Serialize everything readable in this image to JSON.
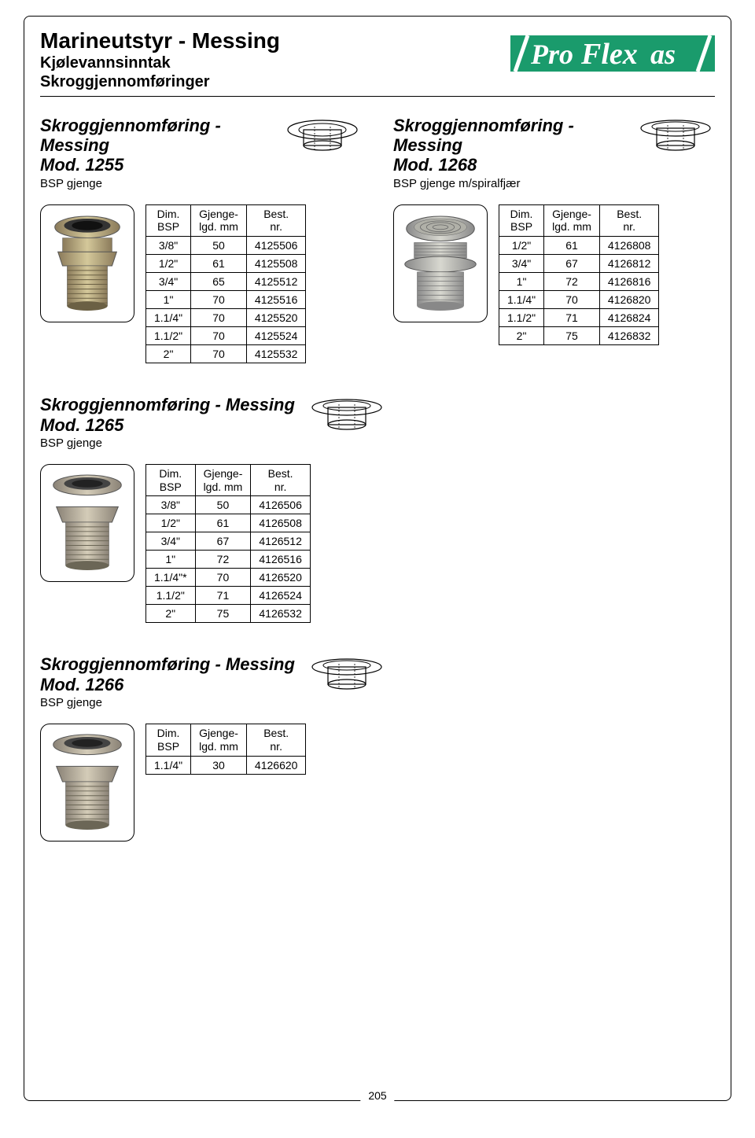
{
  "header": {
    "title": "Marineutstyr - Messing",
    "sub1": "Kjølevannsinntak",
    "sub2": "Skroggjennomføringer",
    "logo": "ProFlex as"
  },
  "colors": {
    "logo_bg": "#1a9b6c",
    "logo_fg": "#ffffff",
    "border": "#000000",
    "text": "#000000",
    "bg": "#ffffff"
  },
  "sections": [
    {
      "title": "Skroggjennomføring - Messing",
      "model": "Mod. 1255",
      "desc": "BSP gjenge",
      "table": {
        "headers": [
          [
            "Dim.",
            "BSP"
          ],
          [
            "Gjenge-",
            "lgd. mm"
          ],
          [
            "Best.",
            "nr."
          ]
        ],
        "rows": [
          [
            "3/8\"",
            "50",
            "4125506"
          ],
          [
            "1/2\"",
            "61",
            "4125508"
          ],
          [
            "3/4\"",
            "65",
            "4125512"
          ],
          [
            "1\"",
            "70",
            "4125516"
          ],
          [
            "1.1/4\"",
            "70",
            "4125520"
          ],
          [
            "1.1/2\"",
            "70",
            "4125524"
          ],
          [
            "2\"",
            "70",
            "4125532"
          ]
        ]
      }
    },
    {
      "title": "Skroggjennomføring - Messing",
      "model": "Mod. 1268",
      "desc": "BSP gjenge m/spiralfjær",
      "table": {
        "headers": [
          [
            "Dim.",
            "BSP"
          ],
          [
            "Gjenge-",
            "lgd. mm"
          ],
          [
            "Best.",
            "nr."
          ]
        ],
        "rows": [
          [
            "1/2\"",
            "61",
            "4126808"
          ],
          [
            "3/4\"",
            "67",
            "4126812"
          ],
          [
            "1\"",
            "72",
            "4126816"
          ],
          [
            "1.1/4\"",
            "70",
            "4126820"
          ],
          [
            "1.1/2\"",
            "71",
            "4126824"
          ],
          [
            "2\"",
            "75",
            "4126832"
          ]
        ]
      }
    },
    {
      "title": "Skroggjennomføring - Messing",
      "model": "Mod. 1265",
      "desc": "BSP gjenge",
      "table": {
        "headers": [
          [
            "Dim.",
            "BSP"
          ],
          [
            "Gjenge-",
            "lgd. mm"
          ],
          [
            "Best.",
            "nr."
          ]
        ],
        "rows": [
          [
            "3/8\"",
            "50",
            "4126506"
          ],
          [
            "1/2\"",
            "61",
            "4126508"
          ],
          [
            "3/4\"",
            "67",
            "4126512"
          ],
          [
            "1\"",
            "72",
            "4126516"
          ],
          [
            "1.1/4\"*",
            "70",
            "4126520"
          ],
          [
            "1.1/2\"",
            "71",
            "4126524"
          ],
          [
            "2\"",
            "75",
            "4126532"
          ]
        ]
      }
    },
    {
      "title": "Skroggjennomføring - Messing",
      "model": "Mod. 1266",
      "desc": "BSP gjenge",
      "table": {
        "headers": [
          [
            "Dim.",
            "BSP"
          ],
          [
            "Gjenge-",
            "lgd. mm"
          ],
          [
            "Best.",
            "nr."
          ]
        ],
        "rows": [
          [
            "1.1/4\"",
            "30",
            "4126620"
          ]
        ]
      }
    }
  ],
  "page_number": "205"
}
